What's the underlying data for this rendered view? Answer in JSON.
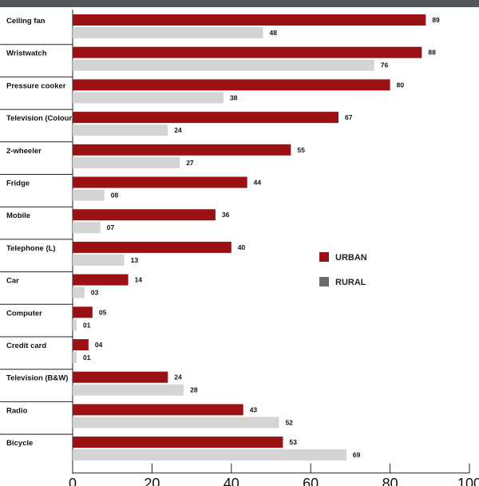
{
  "colors": {
    "urban": "#9b1114",
    "rural": "#d4d4d4",
    "rural_legend": "#6b6b6b",
    "header": "#55585b"
  },
  "legend": [
    {
      "name": "URBAN",
      "color": "#9b1114"
    },
    {
      "name": "RURAL",
      "color": "#6b6b6b"
    }
  ],
  "chart_data": {
    "type": "bar",
    "orientation": "horizontal",
    "categories": [
      "Ceiling fan",
      "Wristwatch",
      "Pressure cooker",
      "Television (Colour)",
      "2-wheeler",
      "Fridge",
      "Mobile",
      "Telephone (L)",
      "Car",
      "Computer",
      "Credit card",
      "Television (B&W)",
      "Radio",
      "Bicycle"
    ],
    "series": [
      {
        "name": "URBAN",
        "values": [
          89,
          88,
          80,
          67,
          55,
          44,
          36,
          40,
          14,
          5,
          4,
          24,
          43,
          53
        ],
        "labels": [
          "89",
          "88",
          "80",
          "67",
          "55",
          "44",
          "36",
          "40",
          "14",
          "05",
          "04",
          "24",
          "43",
          "53"
        ]
      },
      {
        "name": "RURAL",
        "values": [
          48,
          76,
          38,
          24,
          27,
          8,
          7,
          13,
          3,
          1,
          1,
          28,
          52,
          69
        ],
        "labels": [
          "48",
          "76",
          "38",
          "24",
          "27",
          "08",
          "07",
          "13",
          "03",
          "01",
          "01",
          "28",
          "52",
          "69"
        ]
      }
    ],
    "xlim": [
      0,
      100
    ],
    "xticks": [
      0,
      20,
      40,
      60,
      80,
      100
    ],
    "xtick_labels": [
      "0",
      "20",
      "40",
      "60",
      "80",
      "100"
    ],
    "grid": false,
    "legend_position": "right-middle",
    "title": "",
    "xlabel": "",
    "ylabel": ""
  }
}
